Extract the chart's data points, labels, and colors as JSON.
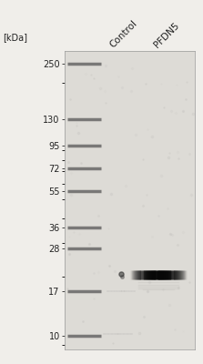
{
  "fig_bg": "#f0eeea",
  "gel_bg": "#dddbd6",
  "kda_label": "[kDa]",
  "ladder_kda": [
    250,
    130,
    95,
    72,
    55,
    36,
    28,
    17,
    10
  ],
  "ladder_color": "#606060",
  "ladder_lw": 2.5,
  "col_labels": [
    "Control",
    "PFDN5"
  ],
  "band_kda": 20.5,
  "pfdn5_band_color": "#1a1a1a",
  "label_fontsize": 7.0,
  "col_label_fontsize": 7.5
}
